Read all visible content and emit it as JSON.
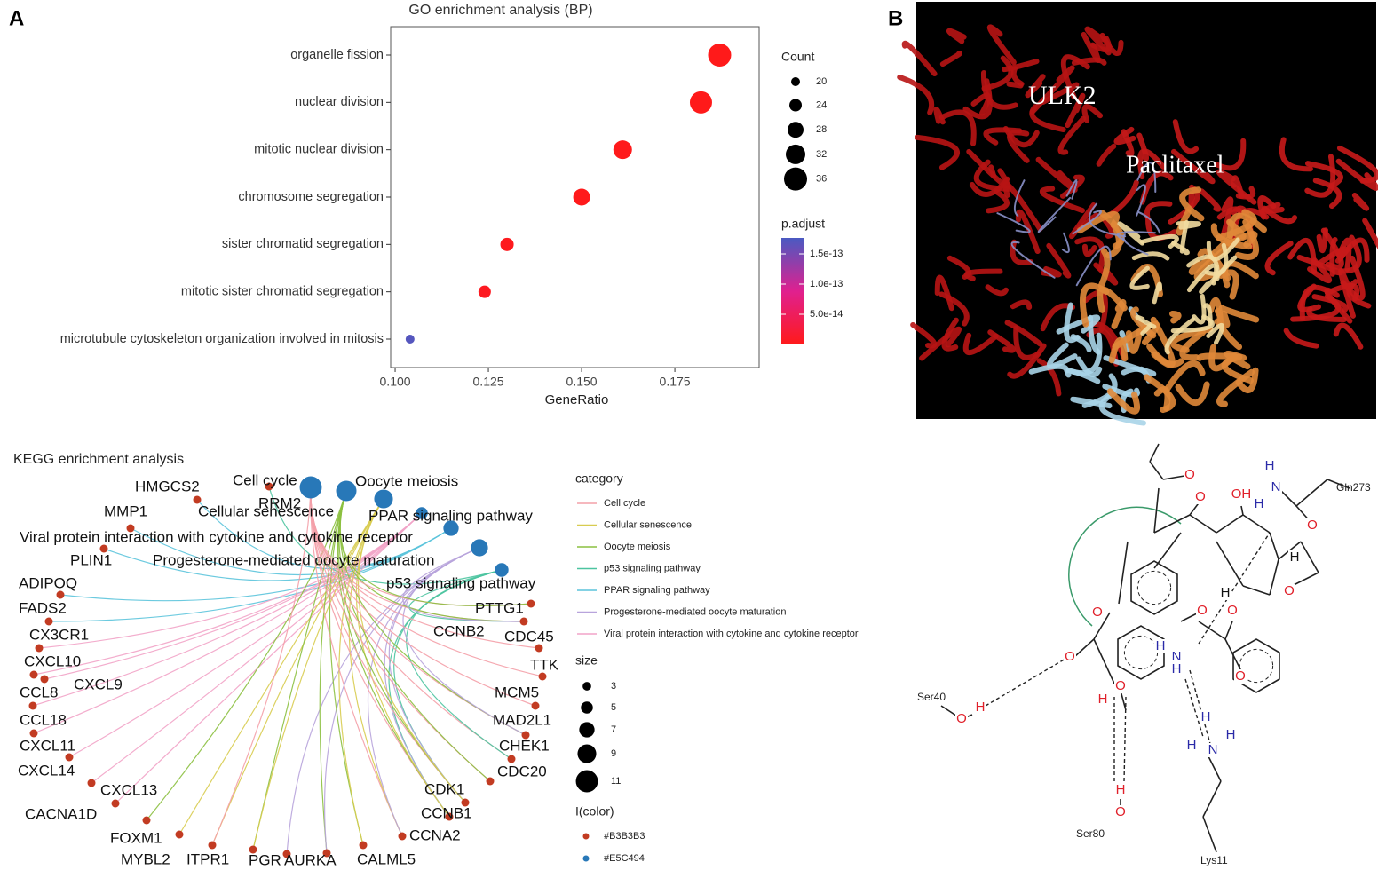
{
  "panel_labels": [
    "A",
    "B"
  ],
  "chart_data": {
    "type": "scatter",
    "title": "GO enrichment analysis (BP)",
    "x_label": "GeneRatio",
    "categories": [
      "organelle fission",
      "nuclear division",
      "mitotic nuclear division",
      "chromosome segregation",
      "sister chromatid segregation",
      "mitotic sister chromatid segregation",
      "microtubule cytoskeleton organization involved in mitosis"
    ],
    "values": [
      0.187,
      0.182,
      0.161,
      0.15,
      0.13,
      0.124,
      0.104
    ],
    "sizes": [
      36,
      35,
      31,
      29,
      25,
      24,
      20
    ],
    "p_adjust": [
      1e-17,
      5e-17,
      5e-16,
      1e-15,
      3e-15,
      5e-15,
      1.7e-13
    ],
    "xlim": [
      0.0988,
      0.1976
    ],
    "xticks": [
      {
        "value": 0.1,
        "label": "0.100"
      },
      0.125,
      {
        "value": 0.15,
        "label": "0.150"
      },
      0.175
    ],
    "size_legend": {
      "title": "Count",
      "values": [
        20,
        24,
        28,
        32,
        36
      ]
    },
    "color_legend": {
      "title": "p.adjust",
      "lim": [
        0,
        1.765e-13
      ],
      "ticks": [
        {
          "value": 5e-14,
          "label": "5.0e-14"
        },
        {
          "value": 1e-13,
          "label": "1.0e-13"
        },
        {
          "value": 1.5e-13,
          "label": "1.5e-13"
        }
      ],
      "colors": [
        "#ff1a1a",
        "#e0208f",
        "#4a5ac2"
      ]
    }
  },
  "kegg": {
    "title": "KEGG enrichment analysis",
    "legend_title": "category",
    "categories": [
      {
        "label": "Cell cycle",
        "color": "#f4a0a8",
        "size": 11
      },
      {
        "label": "Cellular senescence",
        "color": "#d8cc50",
        "size": 9
      },
      {
        "label": "Oocyte meiosis",
        "color": "#8cc040",
        "size": 10
      },
      {
        "label": "p53 signaling pathway",
        "color": "#4cc4a0",
        "size": 6
      },
      {
        "label": "PPAR signaling pathway",
        "color": "#5cc4dc",
        "size": 7
      },
      {
        "label": "Progesterone-mediated oocyte maturation",
        "color": "#b8a4dc",
        "size": 8
      },
      {
        "label": "Viral protein interaction with cytokine and cytokine receptor",
        "color": "#f2a4c8",
        "size": 5
      }
    ],
    "genes": [
      "HMGCS2",
      "RRM2",
      "MMP1",
      "PLIN1",
      "ADIPOQ",
      "FADS2",
      "CX3CR1",
      "CXCL10",
      "CXCL9",
      "CCL8",
      "CCL18",
      "CXCL11",
      "CXCL14",
      "CXCL13",
      "CACNA1D",
      "FOXM1",
      "MYBL2",
      "ITPR1",
      "PGR",
      "AURKA",
      "CALML5",
      "CCNA2",
      "CCNB1",
      "CDK1",
      "CDC20",
      "CHEK1",
      "MAD2L1",
      "MCM5",
      "TTK",
      "CDC45",
      "CCNB2",
      "PTTG1"
    ],
    "gene_color": "#c23b22",
    "category_color": "#2878b8",
    "size_legend": {
      "title": "size",
      "values": [
        3,
        5,
        7,
        9,
        11
      ]
    },
    "color_legend": {
      "title": "I(color)",
      "values": [
        "#B3B3B3",
        "#E5C494"
      ]
    }
  },
  "structure": {
    "labels": [
      "ULK2",
      "Paclitaxel"
    ]
  },
  "interaction": {
    "residues": [
      "Gln273",
      "Ser40",
      "Ser80",
      "Lys11"
    ],
    "atoms": [
      "O",
      "O",
      "OH",
      "H",
      "N",
      "H",
      "O",
      "H",
      "O",
      "H",
      "O",
      "O",
      "O",
      "O",
      "H",
      "N",
      "H",
      "O",
      "O",
      "H",
      "O",
      "H",
      "H",
      "O",
      "H",
      "H",
      "N",
      "H"
    ]
  }
}
